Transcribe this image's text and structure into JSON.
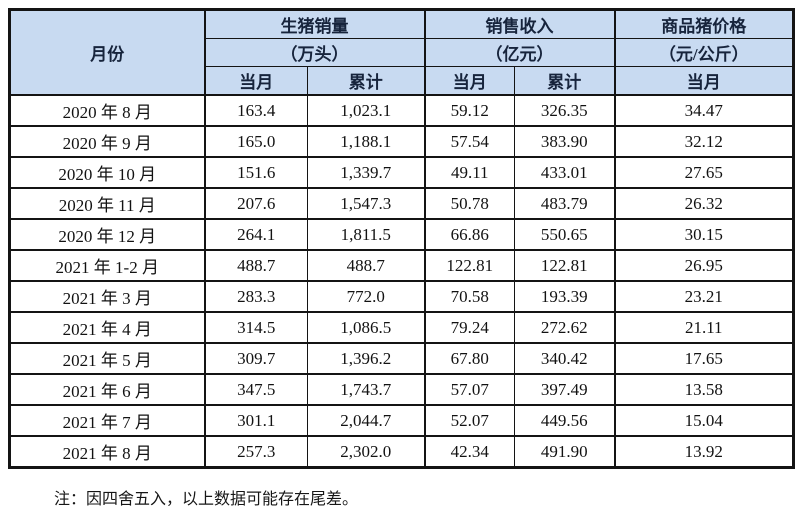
{
  "table": {
    "month_header": "月份",
    "groups": [
      {
        "title": "生猪销量",
        "unit": "（万头）",
        "subcols": [
          "当月",
          "累计"
        ]
      },
      {
        "title": "销售收入",
        "unit": "（亿元）",
        "subcols": [
          "当月",
          "累计"
        ]
      },
      {
        "title": "商品猪价格",
        "unit": "（元/公斤）",
        "subcols": [
          "当月"
        ]
      }
    ],
    "rows": [
      [
        "2020 年 8 月",
        "163.4",
        "1,023.1",
        "59.12",
        "326.35",
        "34.47"
      ],
      [
        "2020 年 9 月",
        "165.0",
        "1,188.1",
        "57.54",
        "383.90",
        "32.12"
      ],
      [
        "2020 年 10 月",
        "151.6",
        "1,339.7",
        "49.11",
        "433.01",
        "27.65"
      ],
      [
        "2020 年 11 月",
        "207.6",
        "1,547.3",
        "50.78",
        "483.79",
        "26.32"
      ],
      [
        "2020 年 12 月",
        "264.1",
        "1,811.5",
        "66.86",
        "550.65",
        "30.15"
      ],
      [
        "2021 年 1-2 月",
        "488.7",
        "488.7",
        "122.81",
        "122.81",
        "26.95"
      ],
      [
        "2021 年 3 月",
        "283.3",
        "772.0",
        "70.58",
        "193.39",
        "23.21"
      ],
      [
        "2021 年 4 月",
        "314.5",
        "1,086.5",
        "79.24",
        "272.62",
        "21.11"
      ],
      [
        "2021 年 5 月",
        "309.7",
        "1,396.2",
        "67.80",
        "340.42",
        "17.65"
      ],
      [
        "2021 年 6 月",
        "347.5",
        "1,743.7",
        "57.07",
        "397.49",
        "13.58"
      ],
      [
        "2021 年 7 月",
        "301.1",
        "2,044.7",
        "52.07",
        "449.56",
        "15.04"
      ],
      [
        "2021 年 8 月",
        "257.3",
        "2,302.0",
        "42.34",
        "491.90",
        "13.92"
      ]
    ]
  },
  "note": "注：因四舍五入，以上数据可能存在尾差。",
  "colors": {
    "header_bg": "#c8daf1",
    "border": "#141414",
    "header_text": "#17243c",
    "body_text": "#121212"
  }
}
